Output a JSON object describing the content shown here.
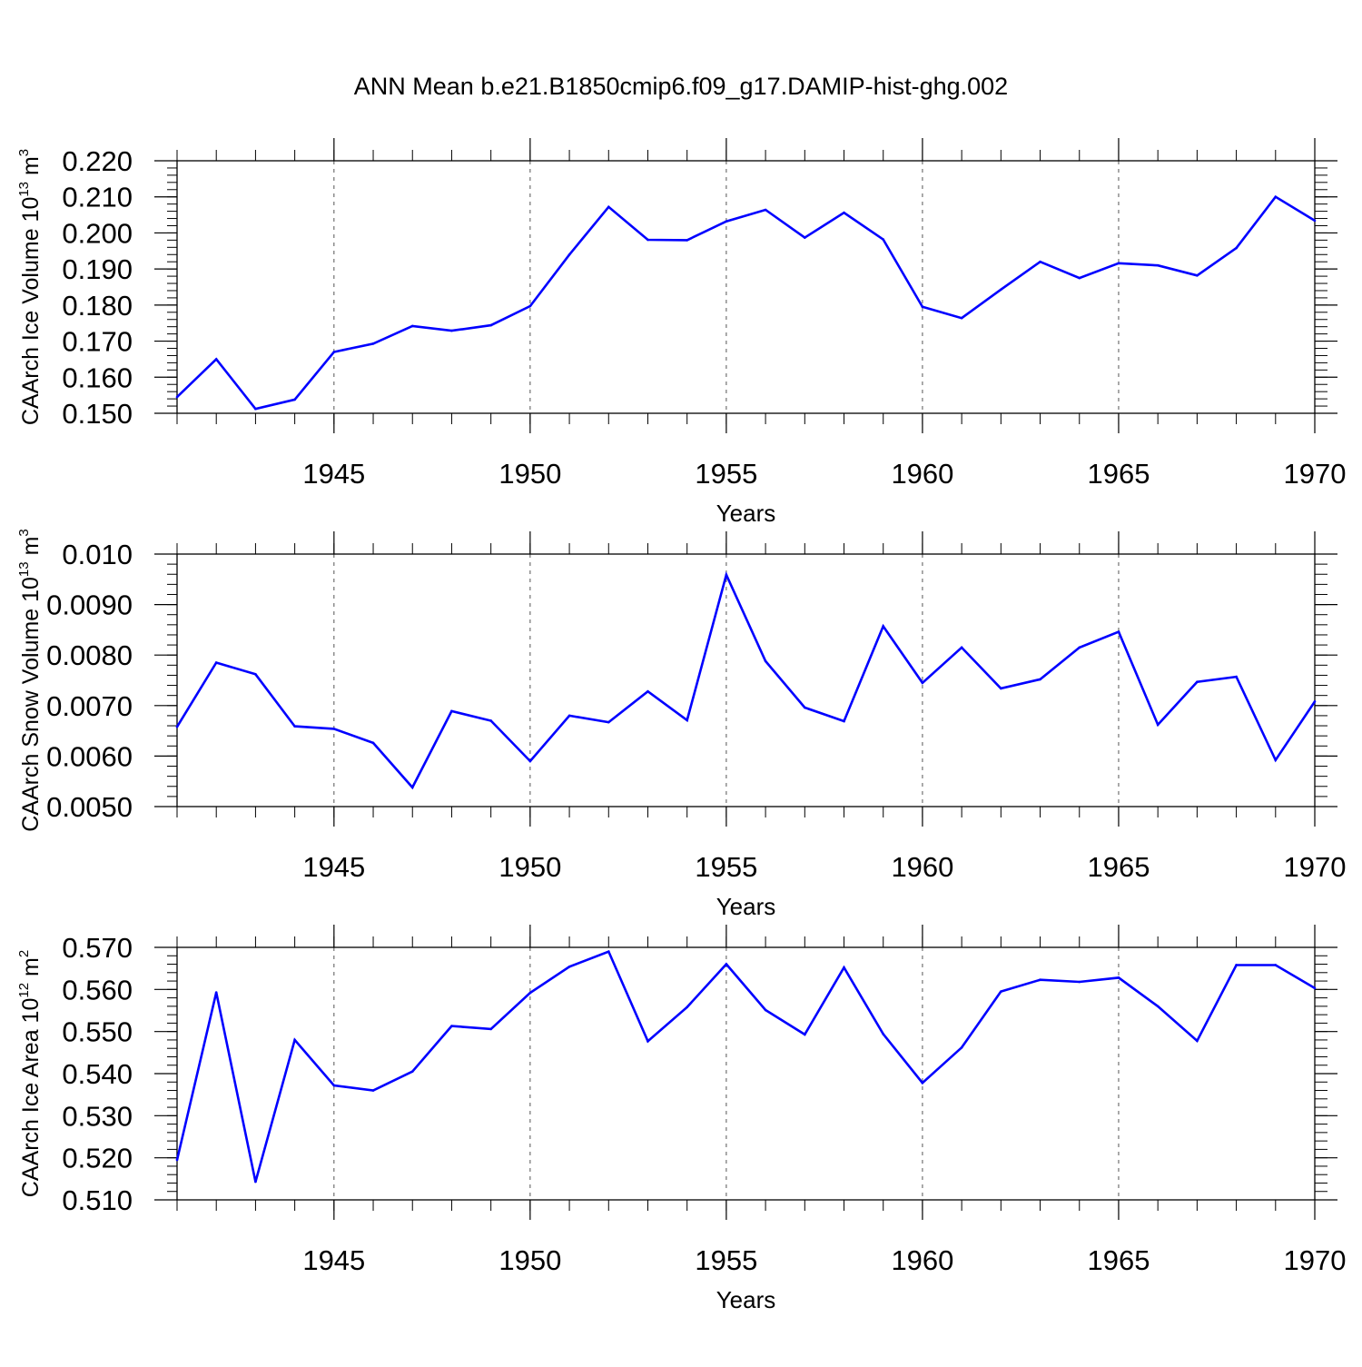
{
  "title": "ANN Mean b.e21.B1850cmip6.f09_g17.DAMIP-hist-ghg.002",
  "colors": {
    "line": "#0000ff",
    "axis": "#000000",
    "grid": "#555555",
    "background": "#ffffff"
  },
  "chart_data": [
    {
      "type": "line",
      "ylabel_main": "CAArch Ice Volume 10",
      "ylabel_exp": "13",
      "ylabel_unit": " m",
      "ylabel_unit_exp": "3",
      "xlabel": "Years",
      "xlim": [
        1941,
        1970
      ],
      "xticks": [
        1945,
        1950,
        1955,
        1960,
        1965,
        1970
      ],
      "xtick_labels": [
        "1945",
        "1950",
        "1955",
        "1960",
        "1965",
        "1970"
      ],
      "ylim": [
        0.15,
        0.22
      ],
      "yticks": [
        0.15,
        0.16,
        0.17,
        0.18,
        0.19,
        0.2,
        0.21,
        0.22
      ],
      "ytick_labels": [
        "0.150",
        "0.160",
        "0.170",
        "0.180",
        "0.190",
        "0.200",
        "0.210",
        "0.220"
      ],
      "x": [
        1941,
        1942,
        1943,
        1944,
        1945,
        1946,
        1947,
        1948,
        1949,
        1950,
        1951,
        1952,
        1953,
        1954,
        1955,
        1956,
        1957,
        1958,
        1959,
        1960,
        1961,
        1962,
        1963,
        1964,
        1965,
        1966,
        1967,
        1968,
        1969,
        1970
      ],
      "y": [
        0.1545,
        0.165,
        0.1512,
        0.1538,
        0.167,
        0.1693,
        0.1742,
        0.1729,
        0.1744,
        0.1797,
        0.194,
        0.2072,
        0.1981,
        0.198,
        0.2032,
        0.2064,
        0.1987,
        0.2056,
        0.1982,
        0.1795,
        0.1764,
        0.1843,
        0.192,
        0.1875,
        0.1916,
        0.191,
        0.1882,
        0.1958,
        0.21,
        0.2034
      ]
    },
    {
      "type": "line",
      "ylabel_main": "CAArch Snow Volume 10",
      "ylabel_exp": "13",
      "ylabel_unit": " m",
      "ylabel_unit_exp": "3",
      "xlabel": "Years",
      "xlim": [
        1941,
        1970
      ],
      "xticks": [
        1945,
        1950,
        1955,
        1960,
        1965,
        1970
      ],
      "xtick_labels": [
        "1945",
        "1950",
        "1955",
        "1960",
        "1965",
        "1970"
      ],
      "ylim": [
        0.005,
        0.01
      ],
      "yticks": [
        0.005,
        0.006,
        0.007,
        0.008,
        0.009,
        0.01
      ],
      "ytick_labels": [
        "0.0050",
        "0.0060",
        "0.0070",
        "0.0080",
        "0.0090",
        "0.010"
      ],
      "x": [
        1941,
        1942,
        1943,
        1944,
        1945,
        1946,
        1947,
        1948,
        1949,
        1950,
        1951,
        1952,
        1953,
        1954,
        1955,
        1956,
        1957,
        1958,
        1959,
        1960,
        1961,
        1962,
        1963,
        1964,
        1965,
        1966,
        1967,
        1968,
        1969,
        1970
      ],
      "y": [
        0.00658,
        0.00785,
        0.00762,
        0.00659,
        0.00654,
        0.00626,
        0.00538,
        0.00689,
        0.0067,
        0.0059,
        0.0068,
        0.00667,
        0.00728,
        0.00671,
        0.00959,
        0.00788,
        0.00696,
        0.00669,
        0.00857,
        0.00745,
        0.00815,
        0.00734,
        0.00752,
        0.00815,
        0.00846,
        0.00662,
        0.00747,
        0.00757,
        0.00592,
        0.00708
      ]
    },
    {
      "type": "line",
      "ylabel_main": "CAArch Ice Area 10",
      "ylabel_exp": "12",
      "ylabel_unit": " m",
      "ylabel_unit_exp": "2",
      "xlabel": "Years",
      "xlim": [
        1941,
        1970
      ],
      "xticks": [
        1945,
        1950,
        1955,
        1960,
        1965,
        1970
      ],
      "xtick_labels": [
        "1945",
        "1950",
        "1955",
        "1960",
        "1965",
        "1970"
      ],
      "ylim": [
        0.51,
        0.57
      ],
      "yticks": [
        0.51,
        0.52,
        0.53,
        0.54,
        0.55,
        0.56,
        0.57
      ],
      "ytick_labels": [
        "0.510",
        "0.520",
        "0.530",
        "0.540",
        "0.550",
        "0.560",
        "0.570"
      ],
      "x": [
        1941,
        1942,
        1943,
        1944,
        1945,
        1946,
        1947,
        1948,
        1949,
        1950,
        1951,
        1952,
        1953,
        1954,
        1955,
        1956,
        1957,
        1958,
        1959,
        1960,
        1961,
        1962,
        1963,
        1964,
        1965,
        1966,
        1967,
        1968,
        1969,
        1970
      ],
      "y": [
        0.5195,
        0.5593,
        0.5143,
        0.548,
        0.5372,
        0.536,
        0.5405,
        0.5513,
        0.5506,
        0.5592,
        0.5654,
        0.569,
        0.5477,
        0.5558,
        0.566,
        0.5551,
        0.5493,
        0.5652,
        0.5494,
        0.5378,
        0.5462,
        0.5595,
        0.5623,
        0.5618,
        0.5628,
        0.556,
        0.5478,
        0.5658,
        0.5658,
        0.5603
      ]
    }
  ]
}
